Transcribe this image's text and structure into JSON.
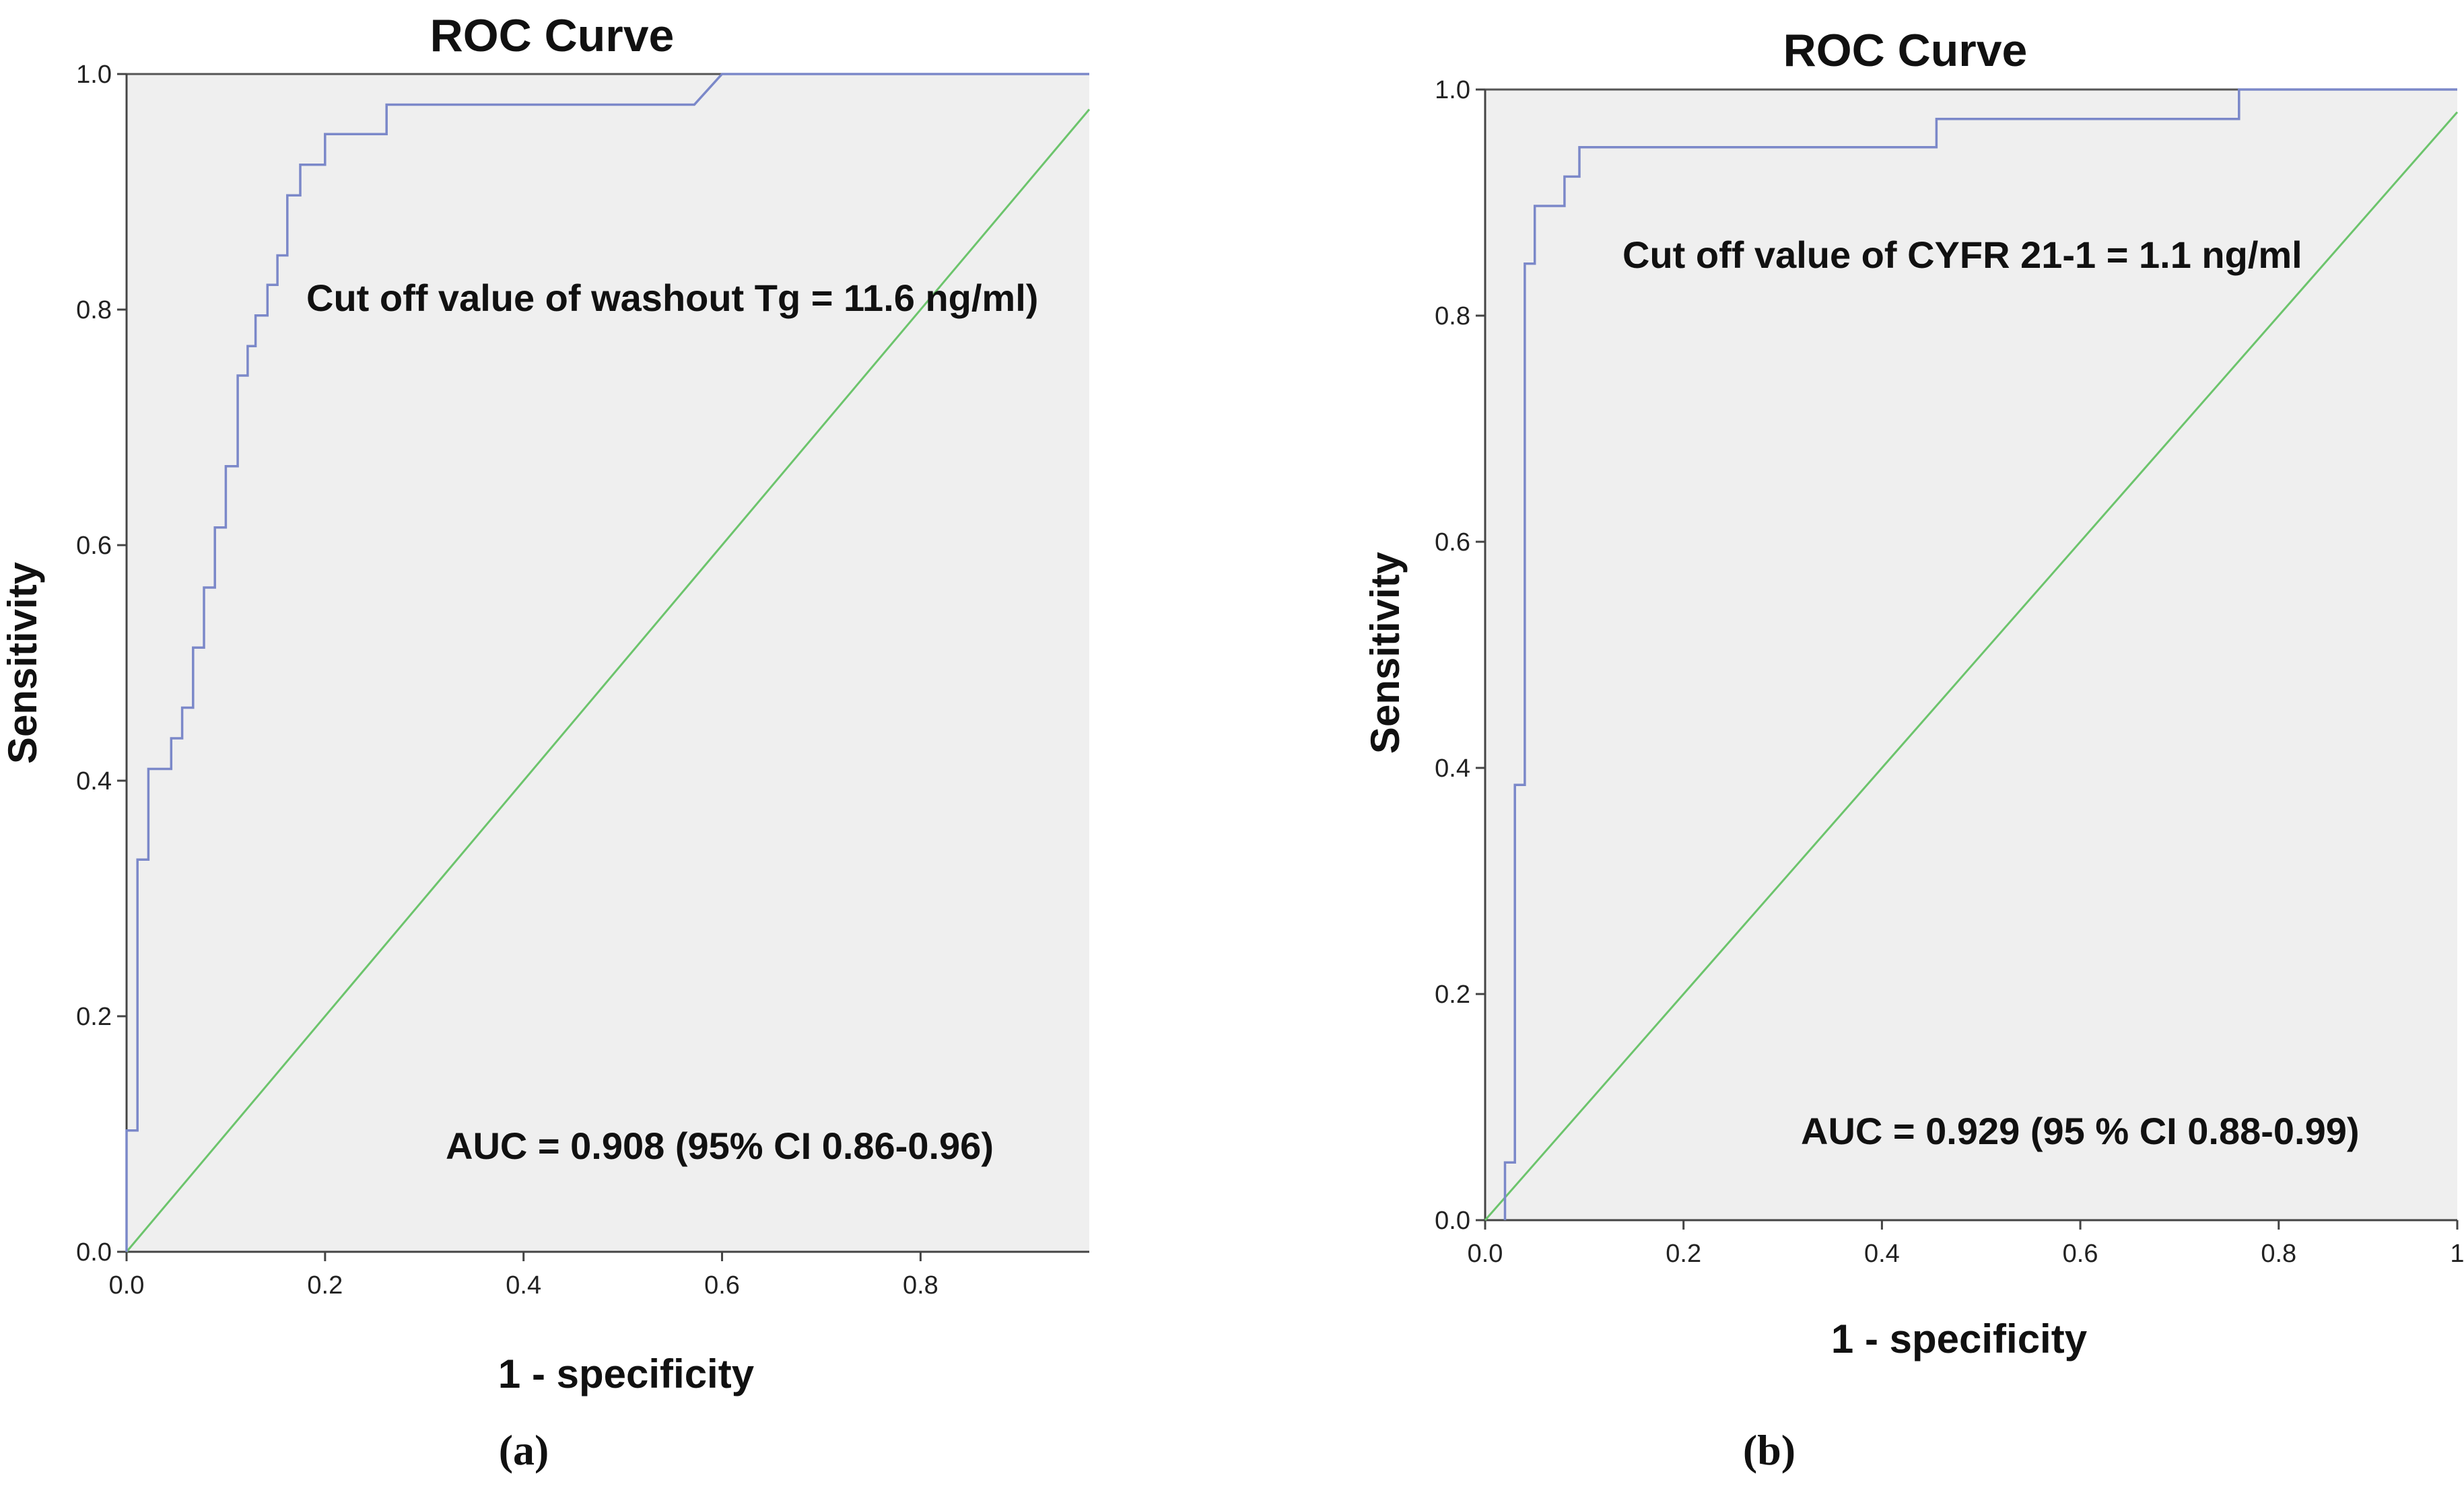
{
  "chart_data": [
    {
      "type": "line",
      "panel_label": "(a)",
      "title": "ROC Curve",
      "xlabel": "1 - specificity",
      "ylabel": "Sensitivity",
      "xlim": [
        0,
        0.97
      ],
      "ylim": [
        0,
        1.0
      ],
      "xticks": [
        "0.0",
        "0.2",
        "0.4",
        "0.6",
        "0.8"
      ],
      "yticks": [
        "0.0",
        "0.2",
        "0.4",
        "0.6",
        "0.8",
        "1.0"
      ],
      "annotations": [
        "Cut off value of washout Tg = 11.6 ng/ml)",
        "AUC = 0.908 (95% CI 0.86-0.96)"
      ],
      "colors": {
        "roc": "#7b88c9",
        "reference": "#6cc46c",
        "plot_bg": "#efefef",
        "axes": "#444444"
      },
      "series": [
        {
          "name": "ROC",
          "x": [
            0.0,
            0.0,
            0.011,
            0.011,
            0.022,
            0.022,
            0.045,
            0.045,
            0.056,
            0.056,
            0.067,
            0.067,
            0.078,
            0.078,
            0.089,
            0.089,
            0.1,
            0.1,
            0.112,
            0.112,
            0.122,
            0.122,
            0.13,
            0.13,
            0.142,
            0.142,
            0.152,
            0.152,
            0.162,
            0.162,
            0.175,
            0.175,
            0.2,
            0.2,
            0.262,
            0.262,
            0.275,
            0.275,
            0.572,
            0.6,
            0.97
          ],
          "y": [
            0.0,
            0.103,
            0.103,
            0.333,
            0.333,
            0.41,
            0.41,
            0.436,
            0.436,
            0.462,
            0.462,
            0.513,
            0.513,
            0.564,
            0.564,
            0.615,
            0.615,
            0.667,
            0.667,
            0.744,
            0.744,
            0.769,
            0.769,
            0.795,
            0.795,
            0.821,
            0.821,
            0.846,
            0.846,
            0.897,
            0.897,
            0.923,
            0.923,
            0.949,
            0.949,
            0.974,
            0.974,
            0.974,
            0.974,
            1.0,
            1.0
          ]
        },
        {
          "name": "Reference line",
          "x": [
            0,
            0.97
          ],
          "y": [
            0,
            0.97
          ]
        }
      ]
    },
    {
      "type": "line",
      "panel_label": "(b)",
      "title": "ROC Curve",
      "xlabel": "1 - specificity",
      "ylabel": "Sensitivity",
      "xlim": [
        0,
        0.98
      ],
      "ylim": [
        0,
        1.0
      ],
      "xticks": [
        "0.0",
        "0.2",
        "0.4",
        "0.6",
        "0.8",
        "1"
      ],
      "xtick_values": [
        0,
        0.2,
        0.4,
        0.6,
        0.8,
        0.98
      ],
      "yticks": [
        "0.0",
        "0.2",
        "0.4",
        "0.6",
        "0.8",
        "1.0"
      ],
      "annotations": [
        "Cut off value of CYFR 21-1 = 1.1 ng/ml",
        "AUC = 0.929 (95 % CI 0.88-0.99)"
      ],
      "colors": {
        "roc": "#7b88c9",
        "reference": "#6cc46c",
        "plot_bg": "#efefef",
        "axes": "#444444"
      },
      "series": [
        {
          "name": "ROC",
          "x": [
            0.02,
            0.02,
            0.03,
            0.03,
            0.04,
            0.04,
            0.05,
            0.05,
            0.06,
            0.06,
            0.08,
            0.08,
            0.095,
            0.095,
            0.105,
            0.105,
            0.455,
            0.455,
            0.71,
            0.71,
            0.76,
            0.76,
            0.98
          ],
          "y": [
            0.0,
            0.051,
            0.051,
            0.385,
            0.385,
            0.846,
            0.846,
            0.897,
            0.897,
            0.897,
            0.897,
            0.923,
            0.923,
            0.949,
            0.949,
            0.949,
            0.949,
            0.974,
            0.974,
            0.974,
            0.974,
            1.0,
            1.0
          ]
        },
        {
          "name": "Reference line",
          "x": [
            0,
            0.98
          ],
          "y": [
            0,
            0.98
          ]
        }
      ]
    }
  ]
}
